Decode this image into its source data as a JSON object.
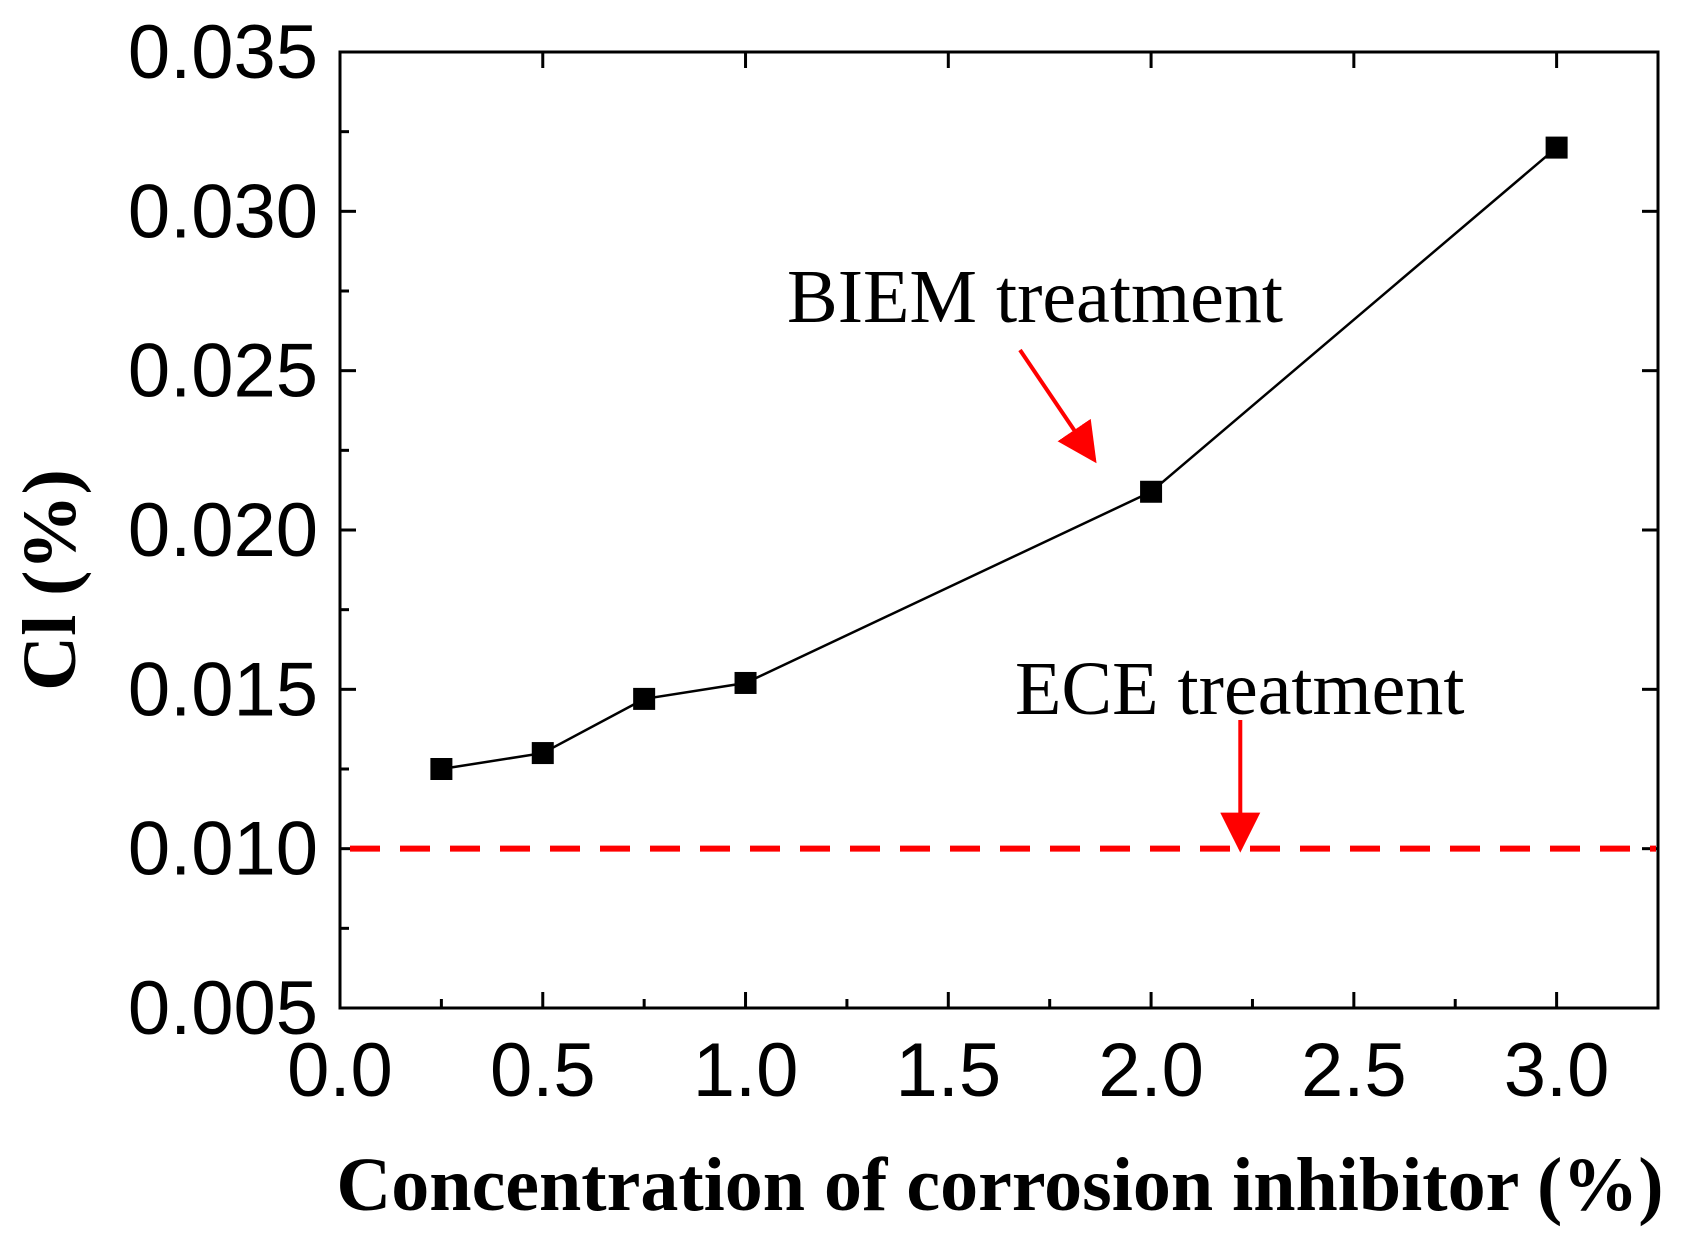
{
  "chart_data": {
    "type": "line",
    "title": "",
    "xlabel": "Concentration of corrosion inhibitor (%)",
    "ylabel": "Cl (%)",
    "xlim": [
      0.0,
      3.25
    ],
    "ylim": [
      0.005,
      0.035
    ],
    "xticks": [
      0.0,
      0.5,
      1.0,
      1.5,
      2.0,
      2.5,
      3.0
    ],
    "xtick_labels": [
      "0.0",
      "0.5",
      "1.0",
      "1.5",
      "2.0",
      "2.5",
      "3.0"
    ],
    "yticks": [
      0.005,
      0.01,
      0.015,
      0.02,
      0.025,
      0.03,
      0.035
    ],
    "ytick_labels": [
      "0.005",
      "0.010",
      "0.015",
      "0.020",
      "0.025",
      "0.030",
      "0.035"
    ],
    "grid": false,
    "series": [
      {
        "name": "BIEM treatment",
        "x": [
          0.25,
          0.5,
          0.75,
          1.0,
          2.0,
          3.0
        ],
        "values": [
          0.0125,
          0.013,
          0.0147,
          0.0152,
          0.0212,
          0.032
        ],
        "color": "#000000",
        "marker": "square"
      }
    ],
    "reference_lines": [
      {
        "name": "ECE treatment",
        "y": 0.01,
        "color": "#ff0000",
        "style": "dashed"
      }
    ],
    "annotations": [
      {
        "text": "BIEM treatment",
        "arrow_color": "#ff0000",
        "arrow_target": [
          1.86,
          0.0222
        ]
      },
      {
        "text": "ECE treatment",
        "arrow_color": "#ff0000",
        "arrow_target": [
          2.22,
          0.01
        ]
      }
    ]
  }
}
